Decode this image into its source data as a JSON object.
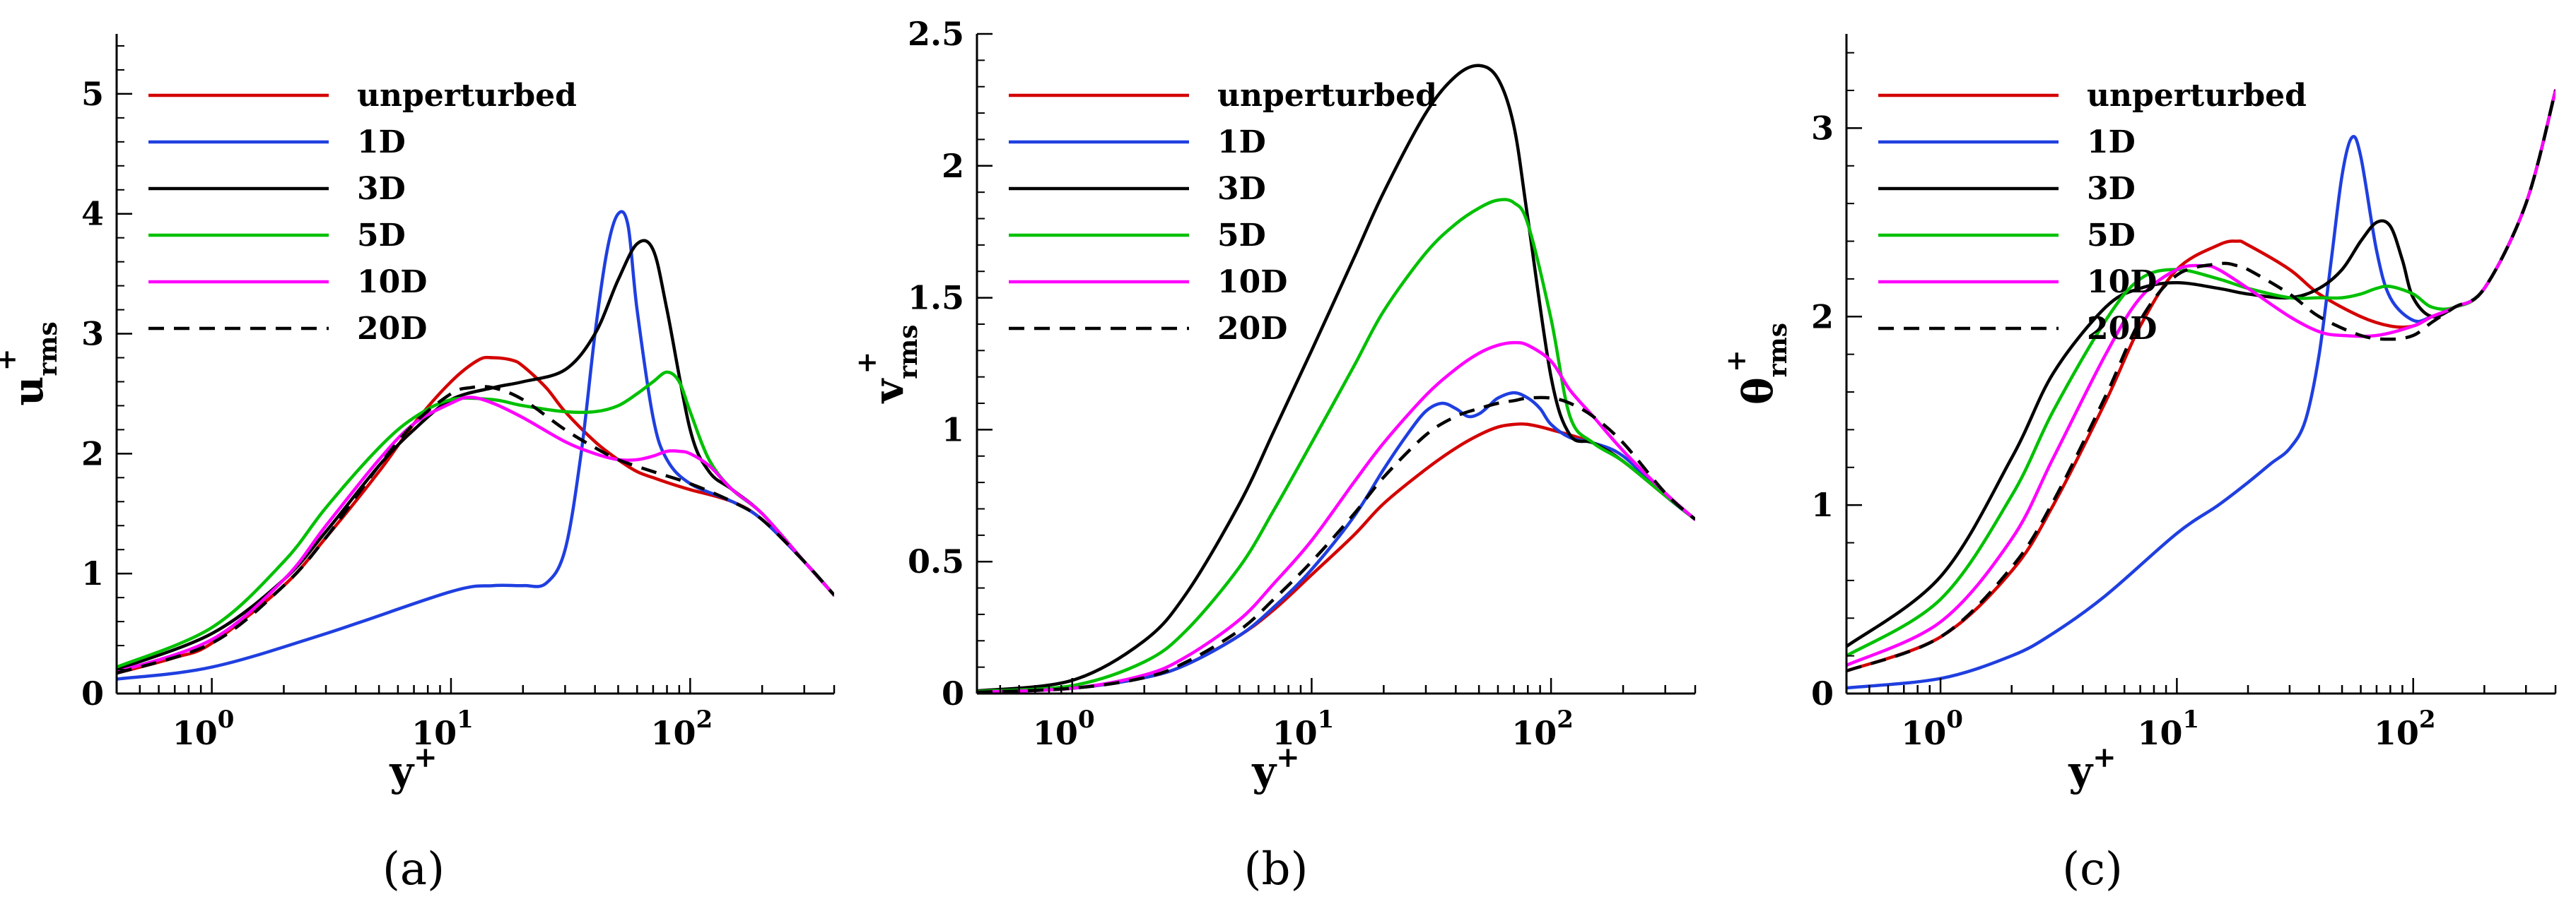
{
  "colors": {
    "unperturbed": "#d40000",
    "1D": "#1f3fe0",
    "3D": "#000000",
    "5D": "#00c000",
    "10D": "#ff00ff",
    "20D": "#000000"
  },
  "chart_data": [
    {
      "type": "line",
      "panel_label": "(a)",
      "xscale": "log",
      "xlim": [
        0.4,
        400
      ],
      "ylim": [
        0,
        5.5
      ],
      "xticks": [
        1,
        10,
        100
      ],
      "xtick_labels": [
        {
          "base": "10",
          "exp": "0"
        },
        {
          "base": "10",
          "exp": "1"
        },
        {
          "base": "10",
          "exp": "2"
        }
      ],
      "yticks": [
        0,
        1,
        2,
        3,
        4,
        5
      ],
      "ytick_labels": [
        "0",
        "1",
        "2",
        "3",
        "4",
        "5"
      ],
      "xlabel": {
        "main": "y",
        "sup": "+"
      },
      "ylabel": {
        "main": "u",
        "sup": "+",
        "sub": "rms"
      },
      "legend_position": "top-left",
      "series": [
        {
          "name": "unperturbed",
          "style": "solid",
          "x": [
            0.4,
            0.7,
            1,
            2,
            3,
            5,
            7,
            10,
            13,
            15,
            18,
            20,
            25,
            30,
            40,
            50,
            60,
            70,
            80,
            100,
            150,
            200,
            300,
            400
          ],
          "y": [
            0.17,
            0.3,
            0.42,
            0.9,
            1.3,
            1.85,
            2.25,
            2.6,
            2.78,
            2.8,
            2.78,
            2.73,
            2.55,
            2.35,
            2.1,
            1.95,
            1.85,
            1.8,
            1.76,
            1.7,
            1.6,
            1.45,
            1.1,
            0.82
          ]
        },
        {
          "name": "1D",
          "style": "solid",
          "x": [
            0.4,
            1,
            3,
            10,
            15,
            20,
            25,
            30,
            35,
            40,
            45,
            50,
            55,
            60,
            70,
            80,
            100,
            150,
            200,
            300,
            400
          ],
          "y": [
            0.12,
            0.22,
            0.5,
            0.85,
            0.9,
            0.9,
            0.92,
            1.2,
            2.0,
            3.0,
            3.7,
            4.0,
            3.9,
            3.2,
            2.3,
            1.95,
            1.75,
            1.6,
            1.45,
            1.1,
            0.82
          ]
        },
        {
          "name": "3D",
          "style": "solid",
          "x": [
            0.4,
            1,
            2,
            3,
            5,
            7,
            10,
            15,
            20,
            30,
            40,
            50,
            60,
            70,
            80,
            100,
            120,
            150,
            200,
            300,
            400
          ],
          "y": [
            0.2,
            0.5,
            0.95,
            1.35,
            1.9,
            2.2,
            2.45,
            2.55,
            2.6,
            2.7,
            3.0,
            3.45,
            3.75,
            3.7,
            3.2,
            2.2,
            1.85,
            1.7,
            1.5,
            1.1,
            0.82
          ]
        },
        {
          "name": "5D",
          "style": "solid",
          "x": [
            0.4,
            1,
            2,
            3,
            5,
            7,
            10,
            15,
            20,
            30,
            40,
            50,
            60,
            70,
            80,
            90,
            100,
            120,
            150,
            200,
            300,
            400
          ],
          "y": [
            0.22,
            0.55,
            1.1,
            1.55,
            2.05,
            2.3,
            2.45,
            2.45,
            2.4,
            2.35,
            2.35,
            2.4,
            2.5,
            2.6,
            2.68,
            2.6,
            2.35,
            1.95,
            1.7,
            1.5,
            1.1,
            0.82
          ]
        },
        {
          "name": "10D",
          "style": "solid",
          "x": [
            0.4,
            1,
            2,
            3,
            5,
            7,
            10,
            12,
            15,
            20,
            30,
            40,
            50,
            60,
            70,
            80,
            90,
            100,
            120,
            150,
            200,
            300,
            400
          ],
          "y": [
            0.18,
            0.45,
            0.95,
            1.4,
            1.95,
            2.25,
            2.42,
            2.47,
            2.42,
            2.3,
            2.1,
            2.0,
            1.95,
            1.95,
            1.98,
            2.02,
            2.02,
            2.0,
            1.9,
            1.7,
            1.5,
            1.1,
            0.82
          ]
        },
        {
          "name": "20D",
          "style": "dashed",
          "x": [
            0.4,
            1,
            2,
            3,
            5,
            7,
            10,
            12,
            15,
            20,
            30,
            40,
            50,
            70,
            100,
            150,
            200,
            300,
            400
          ],
          "y": [
            0.17,
            0.42,
            0.9,
            1.3,
            1.9,
            2.25,
            2.5,
            2.55,
            2.55,
            2.45,
            2.2,
            2.05,
            1.95,
            1.85,
            1.75,
            1.6,
            1.45,
            1.1,
            0.82
          ]
        }
      ]
    },
    {
      "type": "line",
      "panel_label": "(b)",
      "xscale": "log",
      "xlim": [
        0.4,
        400
      ],
      "ylim": [
        0,
        2.5
      ],
      "xticks": [
        1,
        10,
        100
      ],
      "xtick_labels": [
        {
          "base": "10",
          "exp": "0"
        },
        {
          "base": "10",
          "exp": "1"
        },
        {
          "base": "10",
          "exp": "2"
        }
      ],
      "yticks": [
        0,
        0.5,
        1,
        1.5,
        2,
        2.5
      ],
      "ytick_labels": [
        "0",
        "0.5",
        "1",
        "1.5",
        "2",
        "2.5"
      ],
      "xlabel": {
        "main": "y",
        "sup": "+"
      },
      "ylabel": {
        "main": "v",
        "sup": "+",
        "sub": "rms"
      },
      "legend_position": "top-left",
      "series": [
        {
          "name": "unperturbed",
          "style": "solid",
          "x": [
            0.4,
            1,
            2,
            3,
            5,
            7,
            10,
            15,
            20,
            30,
            40,
            50,
            60,
            70,
            80,
            100,
            150,
            200,
            300,
            400
          ],
          "y": [
            0.005,
            0.02,
            0.06,
            0.11,
            0.22,
            0.32,
            0.45,
            0.6,
            0.72,
            0.85,
            0.93,
            0.98,
            1.01,
            1.02,
            1.02,
            1.0,
            0.95,
            0.88,
            0.75,
            0.66
          ]
        },
        {
          "name": "1D",
          "style": "solid",
          "x": [
            0.4,
            1,
            2,
            3,
            5,
            7,
            10,
            15,
            20,
            25,
            30,
            35,
            40,
            45,
            50,
            55,
            60,
            70,
            80,
            90,
            100,
            120,
            150,
            200,
            300,
            400
          ],
          "y": [
            0.005,
            0.02,
            0.06,
            0.11,
            0.22,
            0.33,
            0.47,
            0.67,
            0.85,
            0.98,
            1.07,
            1.1,
            1.08,
            1.05,
            1.06,
            1.09,
            1.12,
            1.14,
            1.12,
            1.08,
            1.02,
            0.97,
            0.95,
            0.9,
            0.75,
            0.66
          ]
        },
        {
          "name": "3D",
          "style": "solid",
          "x": [
            0.4,
            1,
            2,
            3,
            5,
            7,
            10,
            15,
            20,
            30,
            40,
            50,
            60,
            70,
            80,
            100,
            120,
            150,
            200,
            300,
            400
          ],
          "y": [
            0.01,
            0.05,
            0.2,
            0.38,
            0.72,
            1.0,
            1.3,
            1.65,
            1.9,
            2.2,
            2.34,
            2.38,
            2.33,
            2.15,
            1.8,
            1.2,
            0.98,
            0.95,
            0.88,
            0.75,
            0.66
          ]
        },
        {
          "name": "5D",
          "style": "solid",
          "x": [
            0.4,
            1,
            2,
            3,
            5,
            7,
            10,
            15,
            20,
            30,
            40,
            50,
            60,
            70,
            80,
            100,
            120,
            150,
            200,
            300,
            400
          ],
          "y": [
            0.008,
            0.03,
            0.12,
            0.24,
            0.48,
            0.7,
            0.95,
            1.24,
            1.45,
            1.67,
            1.78,
            1.84,
            1.87,
            1.86,
            1.78,
            1.42,
            1.05,
            0.95,
            0.88,
            0.75,
            0.66
          ]
        },
        {
          "name": "10D",
          "style": "solid",
          "x": [
            0.4,
            1,
            2,
            3,
            5,
            7,
            10,
            15,
            20,
            30,
            40,
            50,
            60,
            70,
            80,
            100,
            120,
            150,
            200,
            300,
            400
          ],
          "y": [
            0.005,
            0.02,
            0.07,
            0.14,
            0.28,
            0.42,
            0.58,
            0.8,
            0.95,
            1.13,
            1.23,
            1.29,
            1.32,
            1.33,
            1.32,
            1.26,
            1.15,
            1.05,
            0.92,
            0.76,
            0.66
          ]
        },
        {
          "name": "20D",
          "style": "dashed",
          "x": [
            0.4,
            1,
            2,
            3,
            5,
            7,
            10,
            15,
            20,
            30,
            40,
            50,
            60,
            70,
            80,
            100,
            120,
            150,
            200,
            300,
            400
          ],
          "y": [
            0.005,
            0.02,
            0.06,
            0.12,
            0.24,
            0.36,
            0.5,
            0.68,
            0.82,
            0.98,
            1.05,
            1.08,
            1.1,
            1.11,
            1.12,
            1.12,
            1.1,
            1.05,
            0.95,
            0.76,
            0.66
          ]
        }
      ]
    },
    {
      "type": "line",
      "panel_label": "(c)",
      "xscale": "log",
      "xlim": [
        0.4,
        400
      ],
      "ylim": [
        0,
        3.5
      ],
      "xticks": [
        1,
        10,
        100
      ],
      "xtick_labels": [
        {
          "base": "10",
          "exp": "0"
        },
        {
          "base": "10",
          "exp": "1"
        },
        {
          "base": "10",
          "exp": "2"
        }
      ],
      "yticks": [
        0,
        1,
        2,
        3
      ],
      "ytick_labels": [
        "0",
        "1",
        "2",
        "3"
      ],
      "xlabel": {
        "main": "y",
        "sup": "+"
      },
      "ylabel": {
        "main": "θ",
        "sup": "+",
        "sub": "rms"
      },
      "legend_position": "top-left",
      "series": [
        {
          "name": "unperturbed",
          "style": "solid",
          "x": [
            0.4,
            1,
            2,
            3,
            5,
            7,
            10,
            15,
            18,
            20,
            30,
            40,
            60,
            80,
            100,
            120,
            150,
            200,
            300,
            400
          ],
          "y": [
            0.12,
            0.3,
            0.65,
            1.0,
            1.55,
            1.95,
            2.25,
            2.38,
            2.4,
            2.38,
            2.25,
            2.12,
            2.0,
            1.95,
            1.95,
            2.0,
            2.05,
            2.15,
            2.6,
            3.2
          ]
        },
        {
          "name": "1D",
          "style": "solid",
          "x": [
            0.4,
            1,
            2,
            3,
            5,
            10,
            15,
            20,
            25,
            30,
            35,
            40,
            45,
            50,
            55,
            60,
            70,
            80,
            100,
            120,
            150,
            200,
            300,
            400
          ],
          "y": [
            0.03,
            0.08,
            0.2,
            0.32,
            0.52,
            0.85,
            1.0,
            1.12,
            1.22,
            1.3,
            1.45,
            1.8,
            2.3,
            2.75,
            2.95,
            2.85,
            2.35,
            2.1,
            1.98,
            2.0,
            2.05,
            2.15,
            2.6,
            3.2
          ]
        },
        {
          "name": "3D",
          "style": "solid",
          "x": [
            0.4,
            1,
            2,
            3,
            5,
            7,
            10,
            15,
            20,
            30,
            40,
            50,
            60,
            70,
            80,
            90,
            100,
            120,
            150,
            200,
            300,
            400
          ],
          "y": [
            0.25,
            0.62,
            1.25,
            1.7,
            2.05,
            2.15,
            2.18,
            2.15,
            2.12,
            2.1,
            2.15,
            2.25,
            2.4,
            2.5,
            2.48,
            2.3,
            2.1,
            2.0,
            2.05,
            2.15,
            2.6,
            3.2
          ]
        },
        {
          "name": "5D",
          "style": "solid",
          "x": [
            0.4,
            1,
            2,
            3,
            5,
            7,
            10,
            15,
            20,
            30,
            40,
            50,
            60,
            70,
            80,
            100,
            120,
            150,
            200,
            300,
            400
          ],
          "y": [
            0.2,
            0.5,
            1.05,
            1.5,
            1.98,
            2.2,
            2.25,
            2.2,
            2.15,
            2.1,
            2.1,
            2.1,
            2.12,
            2.15,
            2.16,
            2.12,
            2.05,
            2.05,
            2.15,
            2.6,
            3.2
          ]
        },
        {
          "name": "10D",
          "style": "solid",
          "x": [
            0.4,
            1,
            2,
            3,
            5,
            7,
            10,
            13,
            15,
            20,
            30,
            40,
            50,
            70,
            100,
            120,
            150,
            200,
            300,
            400
          ],
          "y": [
            0.15,
            0.38,
            0.82,
            1.25,
            1.8,
            2.1,
            2.25,
            2.27,
            2.25,
            2.15,
            2.0,
            1.92,
            1.9,
            1.9,
            1.95,
            2.0,
            2.05,
            2.15,
            2.6,
            3.2
          ]
        },
        {
          "name": "20D",
          "style": "dashed",
          "x": [
            0.4,
            1,
            2,
            3,
            5,
            7,
            10,
            15,
            18,
            20,
            30,
            40,
            60,
            80,
            100,
            120,
            150,
            200,
            300,
            400
          ],
          "y": [
            0.12,
            0.3,
            0.67,
            1.02,
            1.58,
            1.98,
            2.22,
            2.28,
            2.27,
            2.25,
            2.12,
            2.0,
            1.9,
            1.88,
            1.9,
            1.97,
            2.05,
            2.15,
            2.6,
            3.2
          ]
        }
      ]
    }
  ]
}
